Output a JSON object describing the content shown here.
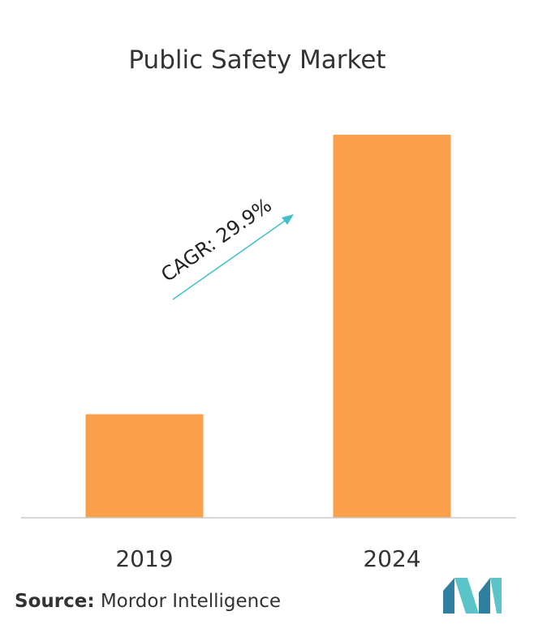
{
  "chart_data": {
    "type": "bar",
    "title": "Public Safety Market",
    "categories": [
      "2019",
      "2024"
    ],
    "values": [
      1,
      3.7
    ],
    "ylim": [
      0,
      3.7
    ],
    "grid": false,
    "annotation": "CAGR: 29.9%",
    "colors": {
      "bar": "#FBA04A",
      "arrow": "#3FBFC7",
      "baseline": "#CCCCCC"
    }
  },
  "source": {
    "label": "Source:",
    "text": "Mordor Intelligence"
  },
  "logo": {
    "colors": [
      "#2E7FA0",
      "#5BC4C9"
    ]
  }
}
